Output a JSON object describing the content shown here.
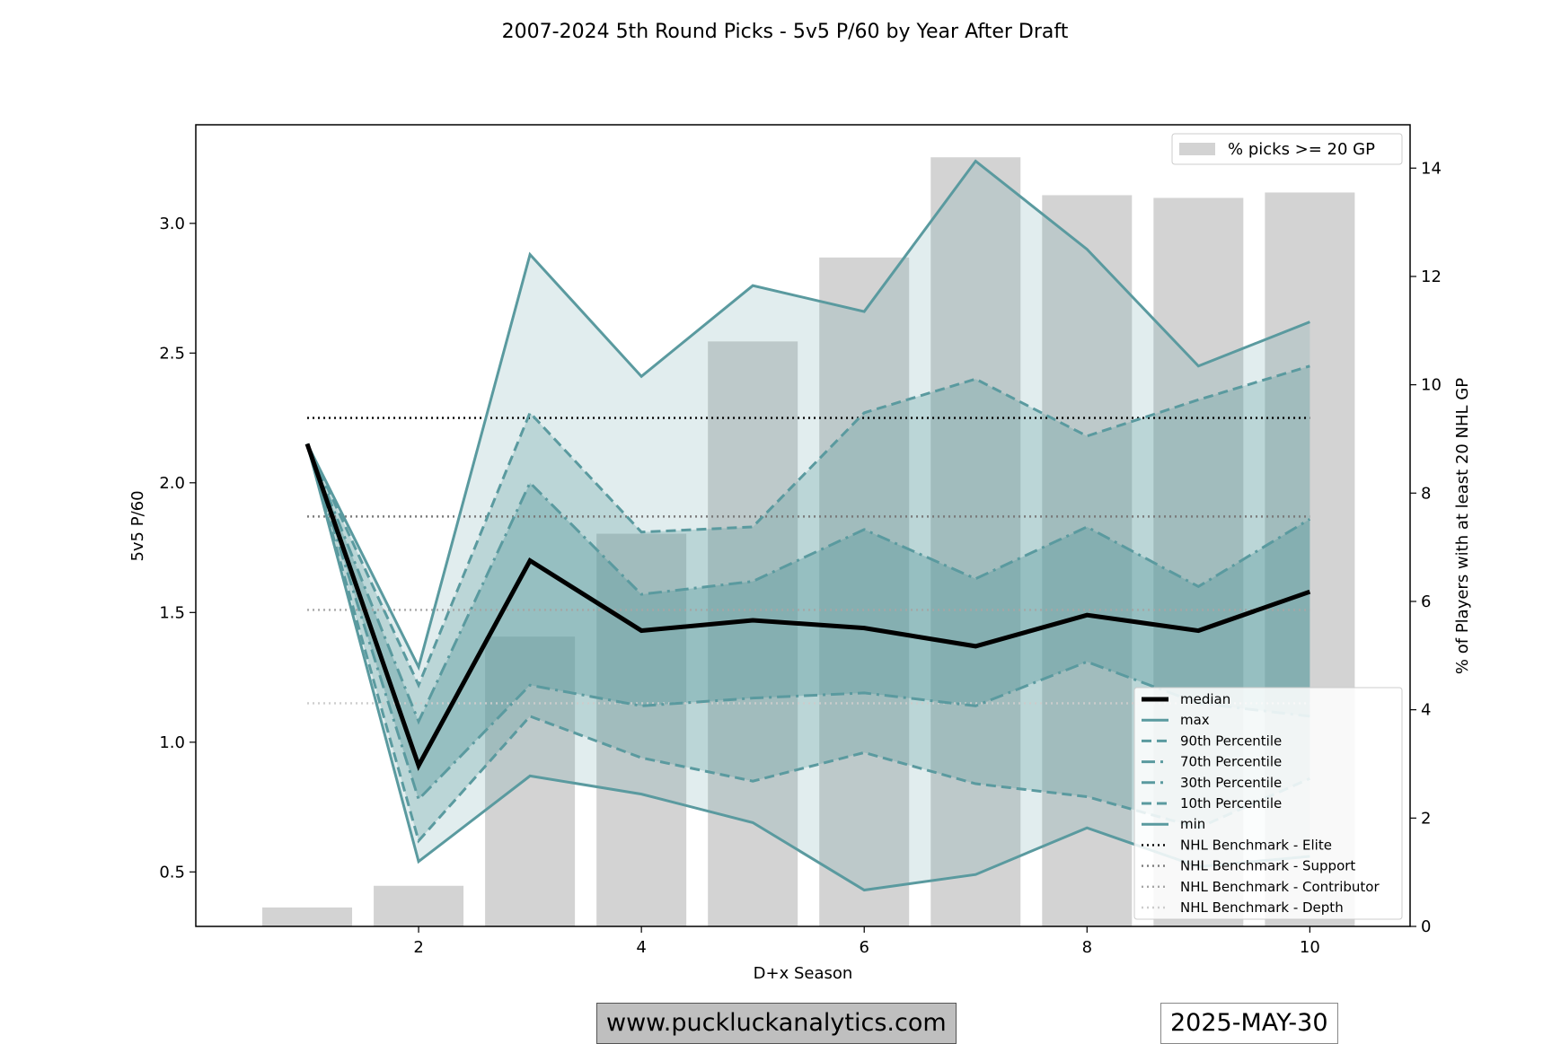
{
  "chart_data": {
    "type": "line",
    "title": "2007-2024 5th Round Picks - 5v5 P/60 by Year After Draft",
    "xlabel": "D+x Season",
    "ylabel": "5v5 P/60",
    "y2label": "% of Players with at least 20 NHL GP",
    "x": [
      1,
      2,
      3,
      4,
      5,
      6,
      7,
      8,
      9,
      10
    ],
    "xlim": [
      0.0,
      10.9
    ],
    "ylim": [
      0.29,
      3.38
    ],
    "y2lim": [
      0,
      14.8
    ],
    "xticks": [
      "2",
      "4",
      "6",
      "8",
      "10"
    ],
    "yticks": [
      "0.5",
      "1.0",
      "1.5",
      "2.0",
      "2.5",
      "3.0"
    ],
    "y2ticks": [
      "0",
      "2",
      "4",
      "6",
      "8",
      "10",
      "12",
      "14"
    ],
    "grid": false,
    "series": [
      {
        "name": "median",
        "values": [
          2.15,
          0.91,
          1.7,
          1.43,
          1.47,
          1.44,
          1.37,
          1.49,
          1.43,
          1.58
        ]
      },
      {
        "name": "max",
        "values": [
          2.15,
          1.29,
          2.88,
          2.41,
          2.76,
          2.66,
          3.24,
          2.9,
          2.45,
          2.62
        ]
      },
      {
        "name": "90th Percentile",
        "values": [
          2.15,
          1.22,
          2.27,
          1.81,
          1.83,
          2.27,
          2.4,
          2.18,
          2.32,
          2.45
        ]
      },
      {
        "name": "70th Percentile",
        "values": [
          2.15,
          1.08,
          2.0,
          1.57,
          1.62,
          1.82,
          1.63,
          1.83,
          1.6,
          1.86
        ]
      },
      {
        "name": "30th Percentile",
        "values": [
          2.15,
          0.78,
          1.22,
          1.14,
          1.17,
          1.19,
          1.14,
          1.31,
          1.15,
          1.1
        ]
      },
      {
        "name": "10th Percentile",
        "values": [
          2.15,
          0.62,
          1.1,
          0.94,
          0.85,
          0.96,
          0.84,
          0.79,
          0.67,
          0.86
        ]
      },
      {
        "name": "min",
        "values": [
          2.15,
          0.54,
          0.87,
          0.8,
          0.69,
          0.43,
          0.49,
          0.67,
          0.52,
          0.56
        ]
      }
    ],
    "benchmarks": [
      {
        "name": "NHL Benchmark - Elite",
        "value": 2.25,
        "color": "#000000"
      },
      {
        "name": "NHL Benchmark - Support",
        "value": 1.87,
        "color": "#7a7a7a"
      },
      {
        "name": "NHL Benchmark - Contributor",
        "value": 1.51,
        "color": "#a6a6a6"
      },
      {
        "name": "NHL Benchmark - Depth",
        "value": 1.15,
        "color": "#cccccc"
      }
    ],
    "bars": {
      "name": "% picks >= 20 GP",
      "values": [
        0.35,
        0.75,
        5.35,
        7.25,
        10.8,
        12.35,
        14.2,
        13.5,
        13.45,
        13.55
      ]
    },
    "legend_placement": "lower-right",
    "bar_legend_placement": "top-right",
    "colors": {
      "line": "#5a9a9f",
      "median": "#000000",
      "bar": "#d3d3d3"
    }
  },
  "footer": {
    "website": "www.puckluckanalytics.com",
    "date": "2025-MAY-30"
  }
}
